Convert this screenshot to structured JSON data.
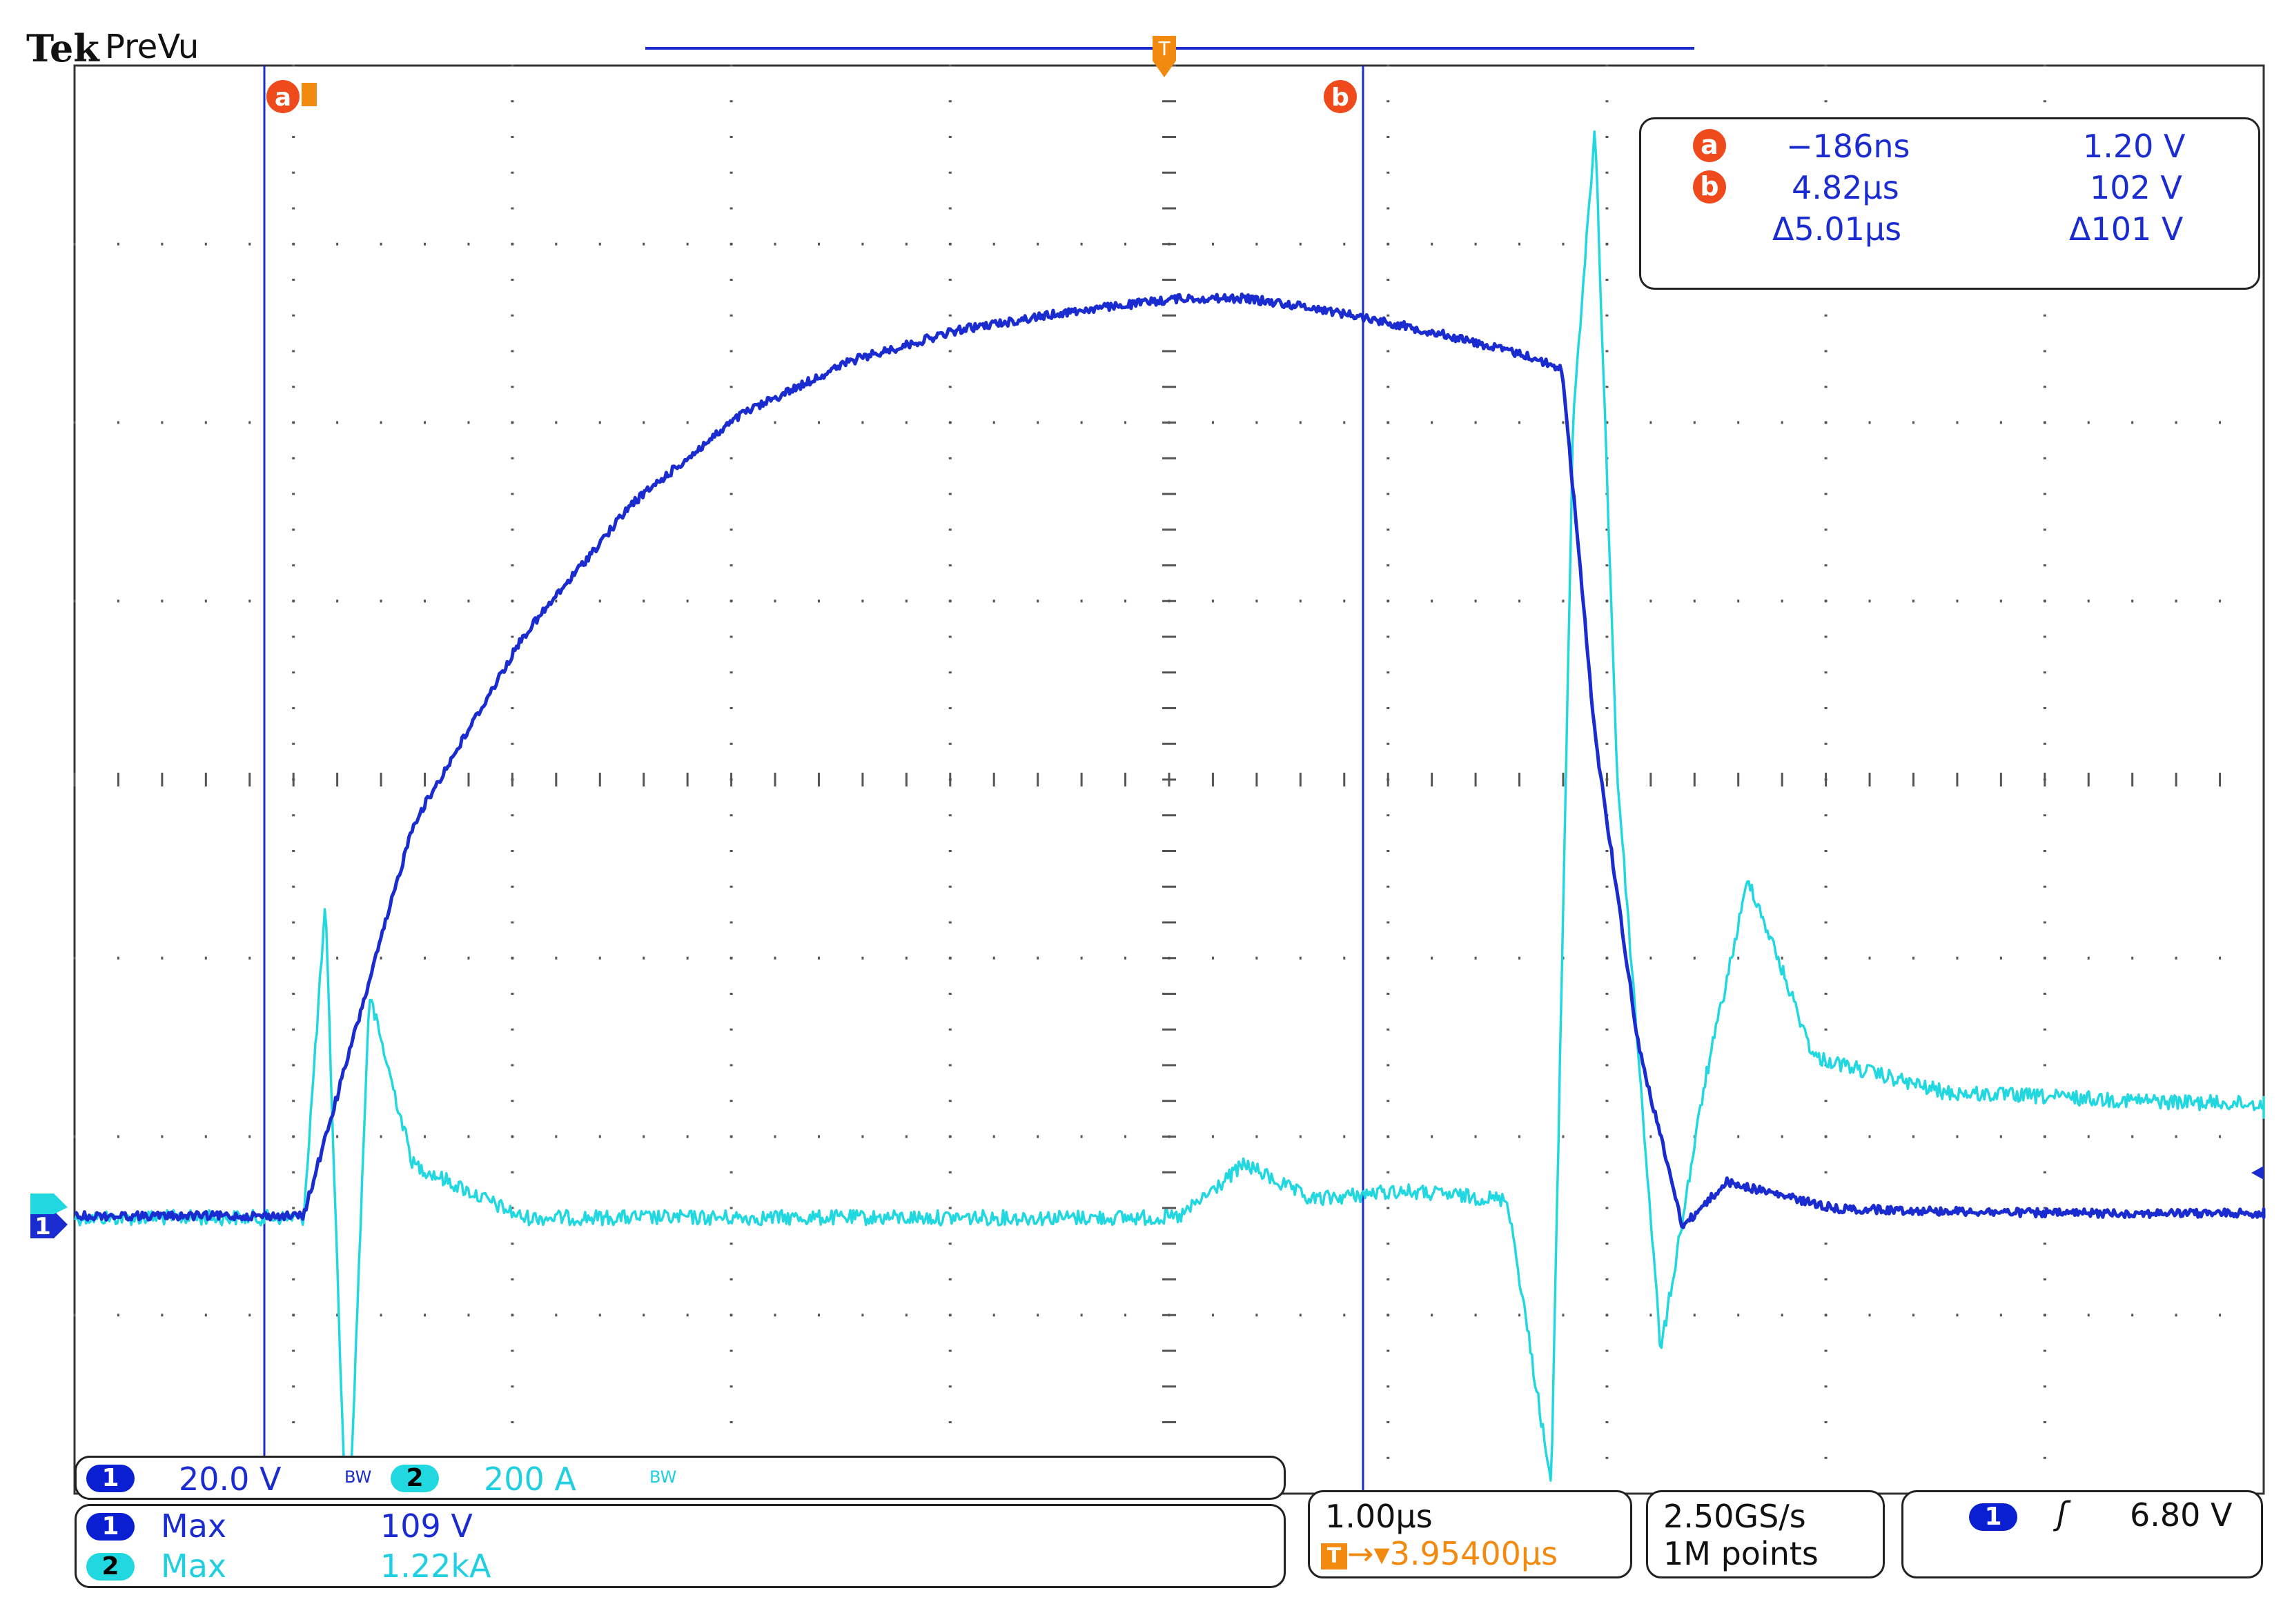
{
  "header": {
    "brand": "Tek",
    "mode": "PreVu"
  },
  "cursor_readout": {
    "a": {
      "label": "a",
      "time": "−186ns",
      "voltage": "1.20 V"
    },
    "b": {
      "label": "b",
      "time": "4.82µs",
      "voltage": "102 V"
    },
    "delta": {
      "time": "Δ5.01µs",
      "voltage": "Δ101 V"
    }
  },
  "markers": {
    "cursor_a": "a",
    "cursor_b": "b",
    "trigger": "T",
    "ch1_marker": "1"
  },
  "channels": {
    "ch1": {
      "number": "1",
      "scale": "20.0 V",
      "bw": "BW",
      "color": "#1a2bd0"
    },
    "ch2": {
      "number": "2",
      "scale": "200 A",
      "bw": "BW",
      "color": "#22d8e0"
    }
  },
  "measurements": [
    {
      "channel": "1",
      "type": "Max",
      "value": "109 V"
    },
    {
      "channel": "2",
      "type": "Max",
      "value": "1.22kA"
    }
  ],
  "timebase": {
    "scale": "1.00µs",
    "trigger_position": "3.95400µs"
  },
  "acquisition": {
    "sample_rate": "2.50GS/s",
    "record_length": "1M points"
  },
  "trigger": {
    "channel": "1",
    "slope": "rising",
    "level": "6.80 V"
  },
  "chart_data": {
    "type": "line",
    "x_unit": "µs",
    "series": [
      {
        "name": "",
        "channel": "1",
        "x": [
          -1.2,
          0.0,
          0.5,
          1.0,
          1.5,
          2.0,
          2.5,
          3.0,
          3.5,
          4.0,
          4.3,
          4.6,
          4.82,
          5.2,
          5.6,
          5.75,
          5.9,
          6.1,
          6.3,
          6.5,
          7.0,
          8.0,
          9.0,
          10.2
        ],
        "y": [
          1.2,
          1.2,
          45.0,
          66.0,
          81.0,
          91.0,
          97.0,
          100.5,
          102.5,
          104.0,
          104.0,
          103.0,
          102.0,
          100.0,
          97.5,
          96.0,
          55.0,
          20.0,
          0.0,
          5.0,
          2.0,
          1.5,
          1.5,
          1.5
        ]
      },
      {
        "name": "",
        "channel": "2",
        "x": [
          -1.2,
          0.0,
          0.1,
          0.2,
          0.3,
          0.5,
          1.0,
          2.0,
          3.0,
          4.0,
          4.3,
          4.6,
          5.0,
          5.5,
          5.7,
          5.8,
          5.9,
          6.0,
          6.2,
          6.4,
          6.6,
          6.9,
          7.5,
          8.5,
          10.2
        ],
        "y": [
          0,
          0,
          350,
          -400,
          250,
          60,
          0,
          0,
          0,
          0,
          60,
          20,
          30,
          20,
          -300,
          900,
          1220,
          500,
          -150,
          150,
          380,
          180,
          140,
          130,
          120
        ]
      }
    ]
  }
}
